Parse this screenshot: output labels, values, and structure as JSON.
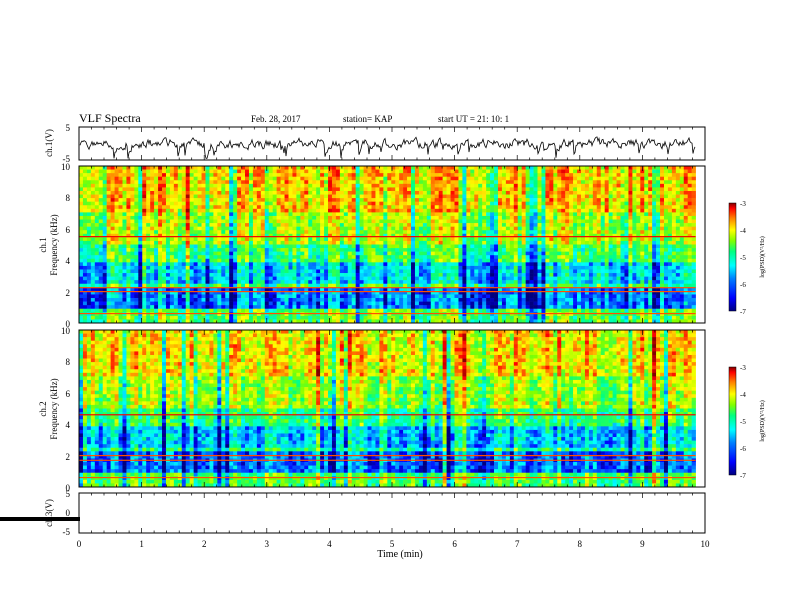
{
  "header": {
    "title": "VLF Spectra",
    "date": "Feb. 28, 2017",
    "station": "station= KAP",
    "start": "start  UT =   21: 10: 1"
  },
  "chart_data": [
    {
      "type": "line",
      "name": "ch1-waveform",
      "ylabel": "ch.1(V)",
      "ylim": [
        -5,
        5
      ],
      "yticks": [
        "5",
        "-5"
      ],
      "xlim": [
        0,
        10
      ],
      "trace_color": "#000000"
    },
    {
      "type": "heatmap",
      "name": "ch1-spectrogram",
      "ylabel_line1": "ch.1",
      "ylabel_line2": "Frequency  (kHz)",
      "ylim": [
        0,
        10
      ],
      "yticks": [
        "0",
        "2",
        "4",
        "6",
        "8",
        "10"
      ],
      "xlim": [
        0,
        10
      ],
      "data_end_min": 9.85,
      "colorbar": {
        "label": "log(PSD)(V²/Hz)",
        "range": [
          -7,
          -3
        ],
        "ticks": [
          "-3",
          "-4",
          "-5",
          "-6",
          "-7"
        ]
      }
    },
    {
      "type": "heatmap",
      "name": "ch2-spectrogram",
      "ylabel_line1": "ch.2",
      "ylabel_line2": "Frequency  (kHz)",
      "ylim": [
        0,
        10
      ],
      "yticks": [
        "0",
        "2",
        "4",
        "6",
        "8",
        "10"
      ],
      "xlim": [
        0,
        10
      ],
      "data_end_min": 9.85,
      "colorbar": {
        "label": "log(PSD)(V²/Hz)",
        "range": [
          -7,
          -3
        ],
        "ticks": [
          "-3",
          "-4",
          "-5",
          "-6",
          "-7"
        ]
      }
    },
    {
      "type": "line",
      "name": "ch3-waveform",
      "ylabel": "ch.3(V)",
      "ylim": [
        -5,
        5
      ],
      "yticks": [
        "5",
        "0",
        "-5"
      ],
      "xlim": [
        0,
        10
      ],
      "xlabel": "Time  (min)",
      "xticks": [
        "0",
        "1",
        "2",
        "3",
        "4",
        "5",
        "6",
        "7",
        "8",
        "9",
        "10"
      ],
      "constant_value": -1.5
    }
  ],
  "colormap": [
    "#000080",
    "#0000ff",
    "#0080ff",
    "#00ffff",
    "#00ff80",
    "#80ff00",
    "#ffff00",
    "#ff8000",
    "#ff0000",
    "#800000"
  ]
}
